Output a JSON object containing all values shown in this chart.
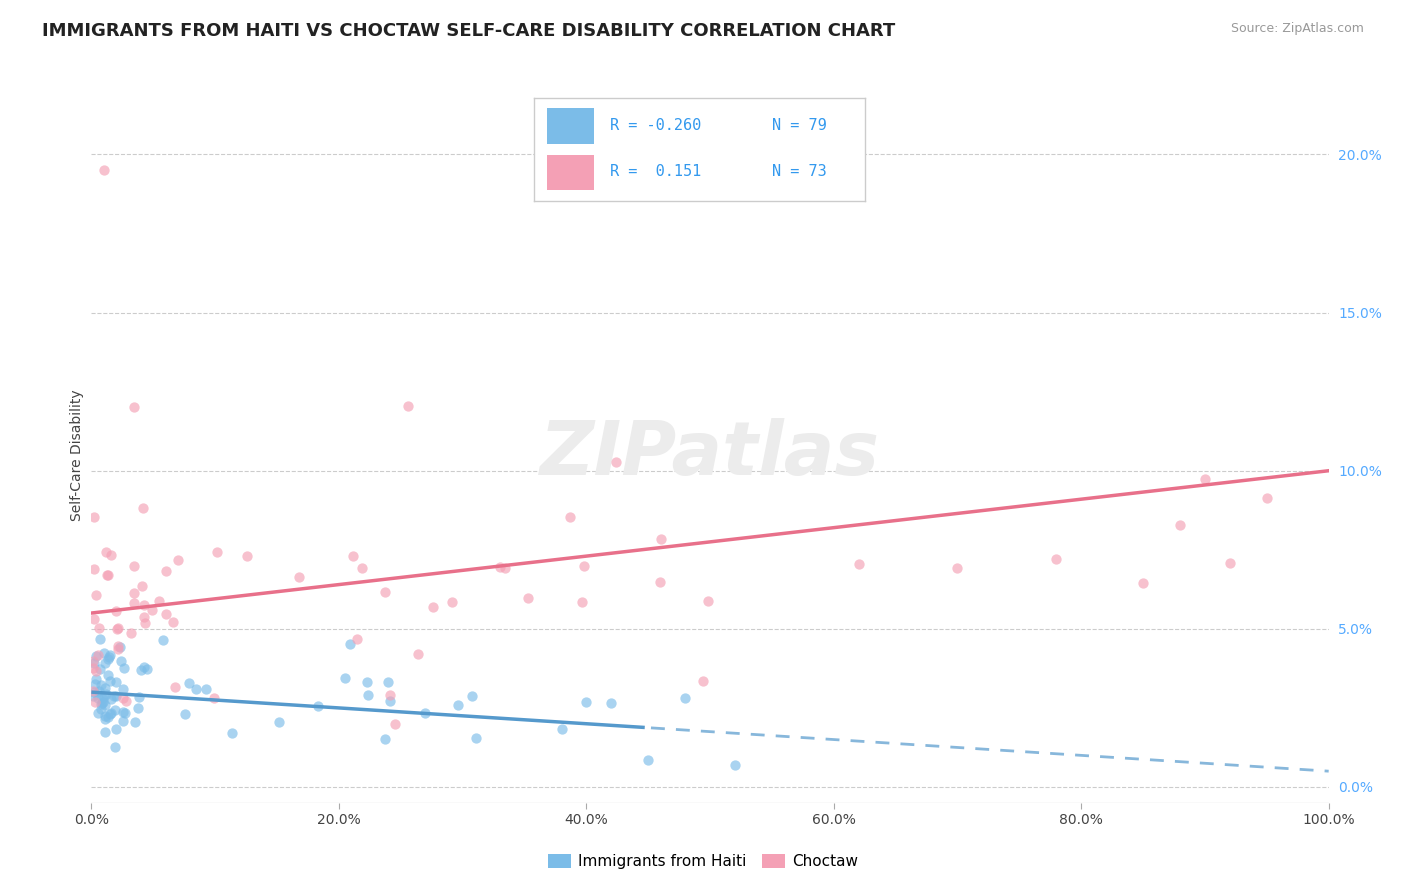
{
  "title": "IMMIGRANTS FROM HAITI VS CHOCTAW SELF-CARE DISABILITY CORRELATION CHART",
  "source": "Source: ZipAtlas.com",
  "ylabel_label": "Self-Care Disability",
  "xlim": [
    0,
    1.0
  ],
  "ylim": [
    -0.005,
    0.215
  ],
  "color_haiti": "#7bbce8",
  "color_choctaw": "#f4a0b5",
  "color_haiti_line": "#5599cc",
  "color_choctaw_line": "#e8708a",
  "background_color": "#ffffff",
  "grid_color": "#cccccc",
  "title_color": "#222222",
  "source_color": "#999999",
  "ylabel_color": "#444444",
  "right_tick_color": "#55aaff",
  "bottom_tick_color": "#444444"
}
